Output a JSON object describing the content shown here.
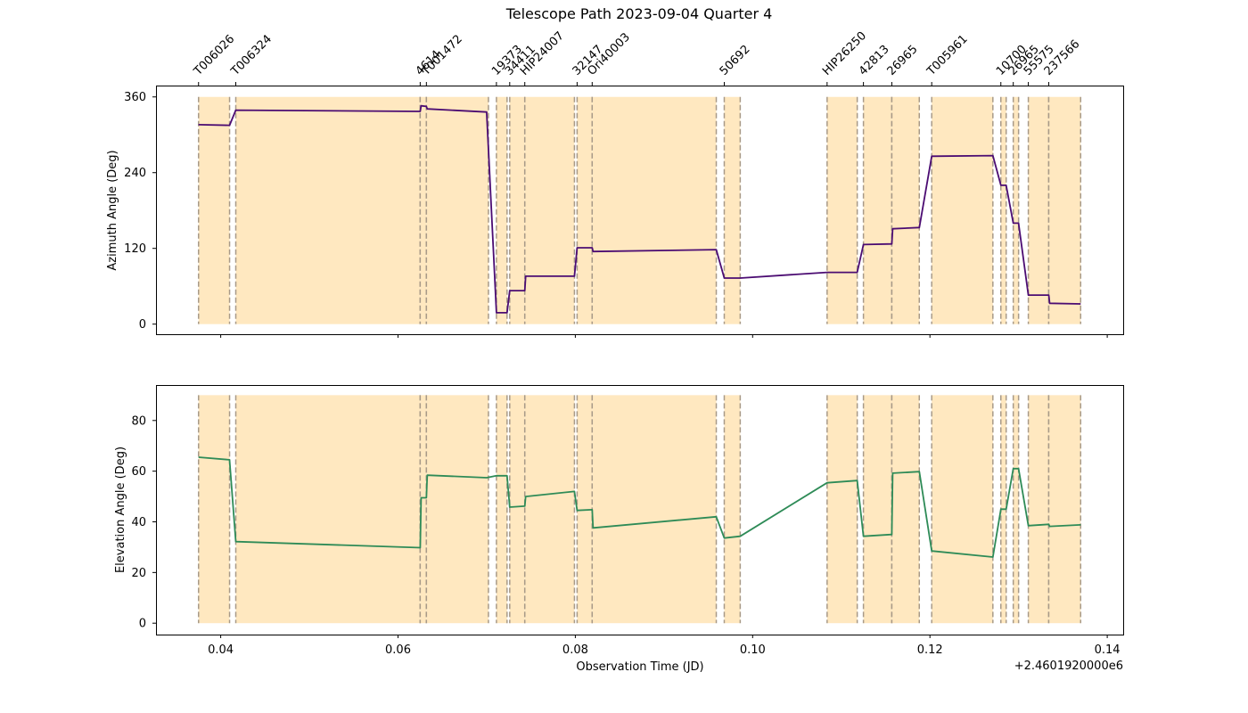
{
  "chart_data": {
    "type": "line",
    "title": "Telescope Path 2023-09-04 Quarter 4",
    "xlabel": "Observation Time (JD)",
    "x_offset_label": "+2.4601920000e6",
    "xlim": [
      0.0327,
      0.1418
    ],
    "x_ticks": [
      0.04,
      0.06,
      0.08,
      0.1,
      0.12,
      0.14
    ],
    "x_tick_labels": [
      "0.04",
      "0.06",
      "0.08",
      "0.10",
      "0.12",
      "0.14"
    ],
    "grid": false,
    "colors": {
      "azimuth": "#4b0c72",
      "elevation": "#2e8b57",
      "band_fill": "#ffe8c0",
      "band_edge": "#a89a88"
    },
    "observation_windows": [
      {
        "label": "T006026",
        "start": 0.0375,
        "end": 0.041
      },
      {
        "label": "T006324",
        "start": 0.0417,
        "end": 0.0625
      },
      {
        "label": "4614",
        "start": 0.0625,
        "end": 0.0632
      },
      {
        "label": "T001472",
        "start": 0.0632,
        "end": 0.0702
      },
      {
        "label": "19373",
        "start": 0.0711,
        "end": 0.0723
      },
      {
        "label": "34411",
        "start": 0.0726,
        "end": 0.0743
      },
      {
        "label": "HIP24007",
        "start": 0.0743,
        "end": 0.0799
      },
      {
        "label": "32147",
        "start": 0.0802,
        "end": 0.0819
      },
      {
        "label": "Ori40003",
        "start": 0.0819,
        "end": 0.0959
      },
      {
        "label": "50692",
        "start": 0.0968,
        "end": 0.0986
      },
      {
        "label": "HIP26250",
        "start": 0.1084,
        "end": 0.1118
      },
      {
        "label": "42813",
        "start": 0.1125,
        "end": 0.1157
      },
      {
        "label": "26965",
        "start": 0.1157,
        "end": 0.1188
      },
      {
        "label": "T005961",
        "start": 0.1202,
        "end": 0.1271
      },
      {
        "label": "10700",
        "start": 0.128,
        "end": 0.1286
      },
      {
        "label": "26965",
        "start": 0.1294,
        "end": 0.13
      },
      {
        "label": "55575",
        "start": 0.1311,
        "end": 0.1334
      },
      {
        "label": "237566",
        "start": 0.1334,
        "end": 0.137
      }
    ],
    "panels": [
      {
        "ylabel": "Azimuth Angle (Deg)",
        "ylim": [
          -16,
          378
        ],
        "yticks": [
          0,
          120,
          240,
          360
        ],
        "ytick_labels": [
          "0",
          "120",
          "240",
          "360"
        ],
        "band_range": [
          0,
          360
        ],
        "series": [
          {
            "key": "azimuth",
            "x": [
              0.0375,
              0.041,
              0.0417,
              0.0625,
              0.0626,
              0.0632,
              0.0633,
              0.07,
              0.0711,
              0.0723,
              0.0726,
              0.0743,
              0.0744,
              0.0799,
              0.0802,
              0.0819,
              0.082,
              0.0959,
              0.0968,
              0.0986,
              0.1084,
              0.1118,
              0.1125,
              0.1157,
              0.1158,
              0.1188,
              0.1202,
              0.1271,
              0.128,
              0.1286,
              0.1294,
              0.13,
              0.1311,
              0.1334,
              0.1335,
              0.137
            ],
            "y": [
              316,
              315,
              339,
              337,
              346,
              345,
              341,
              336,
              18,
              18,
              53,
              53,
              76,
              76,
              121,
              121,
              115,
              118,
              73,
              73,
              82,
              82,
              126,
              127,
              151,
              153,
              266,
              267,
              220,
              220,
              160,
              160,
              46,
              46,
              33,
              32
            ]
          }
        ]
      },
      {
        "ylabel": "Elevation Angle (Deg)",
        "ylim": [
          -4.5,
          94
        ],
        "yticks": [
          0,
          20,
          40,
          60,
          80
        ],
        "ytick_labels": [
          "0",
          "20",
          "40",
          "60",
          "80"
        ],
        "band_range": [
          0,
          90
        ],
        "series": [
          {
            "key": "elevation",
            "x": [
              0.0375,
              0.041,
              0.0417,
              0.0625,
              0.0626,
              0.0632,
              0.0633,
              0.07,
              0.0711,
              0.0723,
              0.0726,
              0.0743,
              0.0744,
              0.0799,
              0.0802,
              0.0819,
              0.082,
              0.0959,
              0.0968,
              0.0986,
              0.1084,
              0.1118,
              0.1125,
              0.1157,
              0.1158,
              0.1188,
              0.1202,
              0.1271,
              0.128,
              0.1286,
              0.1294,
              0.13,
              0.1311,
              0.1334,
              0.1335,
              0.137
            ],
            "y": [
              65.5,
              64.5,
              32.2,
              29.8,
              49.5,
              49.5,
              58.4,
              57.4,
              58.2,
              58.2,
              45.8,
              46.2,
              50,
              52,
              44.5,
              44.8,
              37.6,
              42,
              33.6,
              34.3,
              55.4,
              56.3,
              34.3,
              35,
              59.2,
              59.8,
              28.5,
              26.1,
              45,
              45,
              61,
              61,
              38.5,
              39,
              38.2,
              38.8
            ]
          }
        ]
      }
    ]
  }
}
